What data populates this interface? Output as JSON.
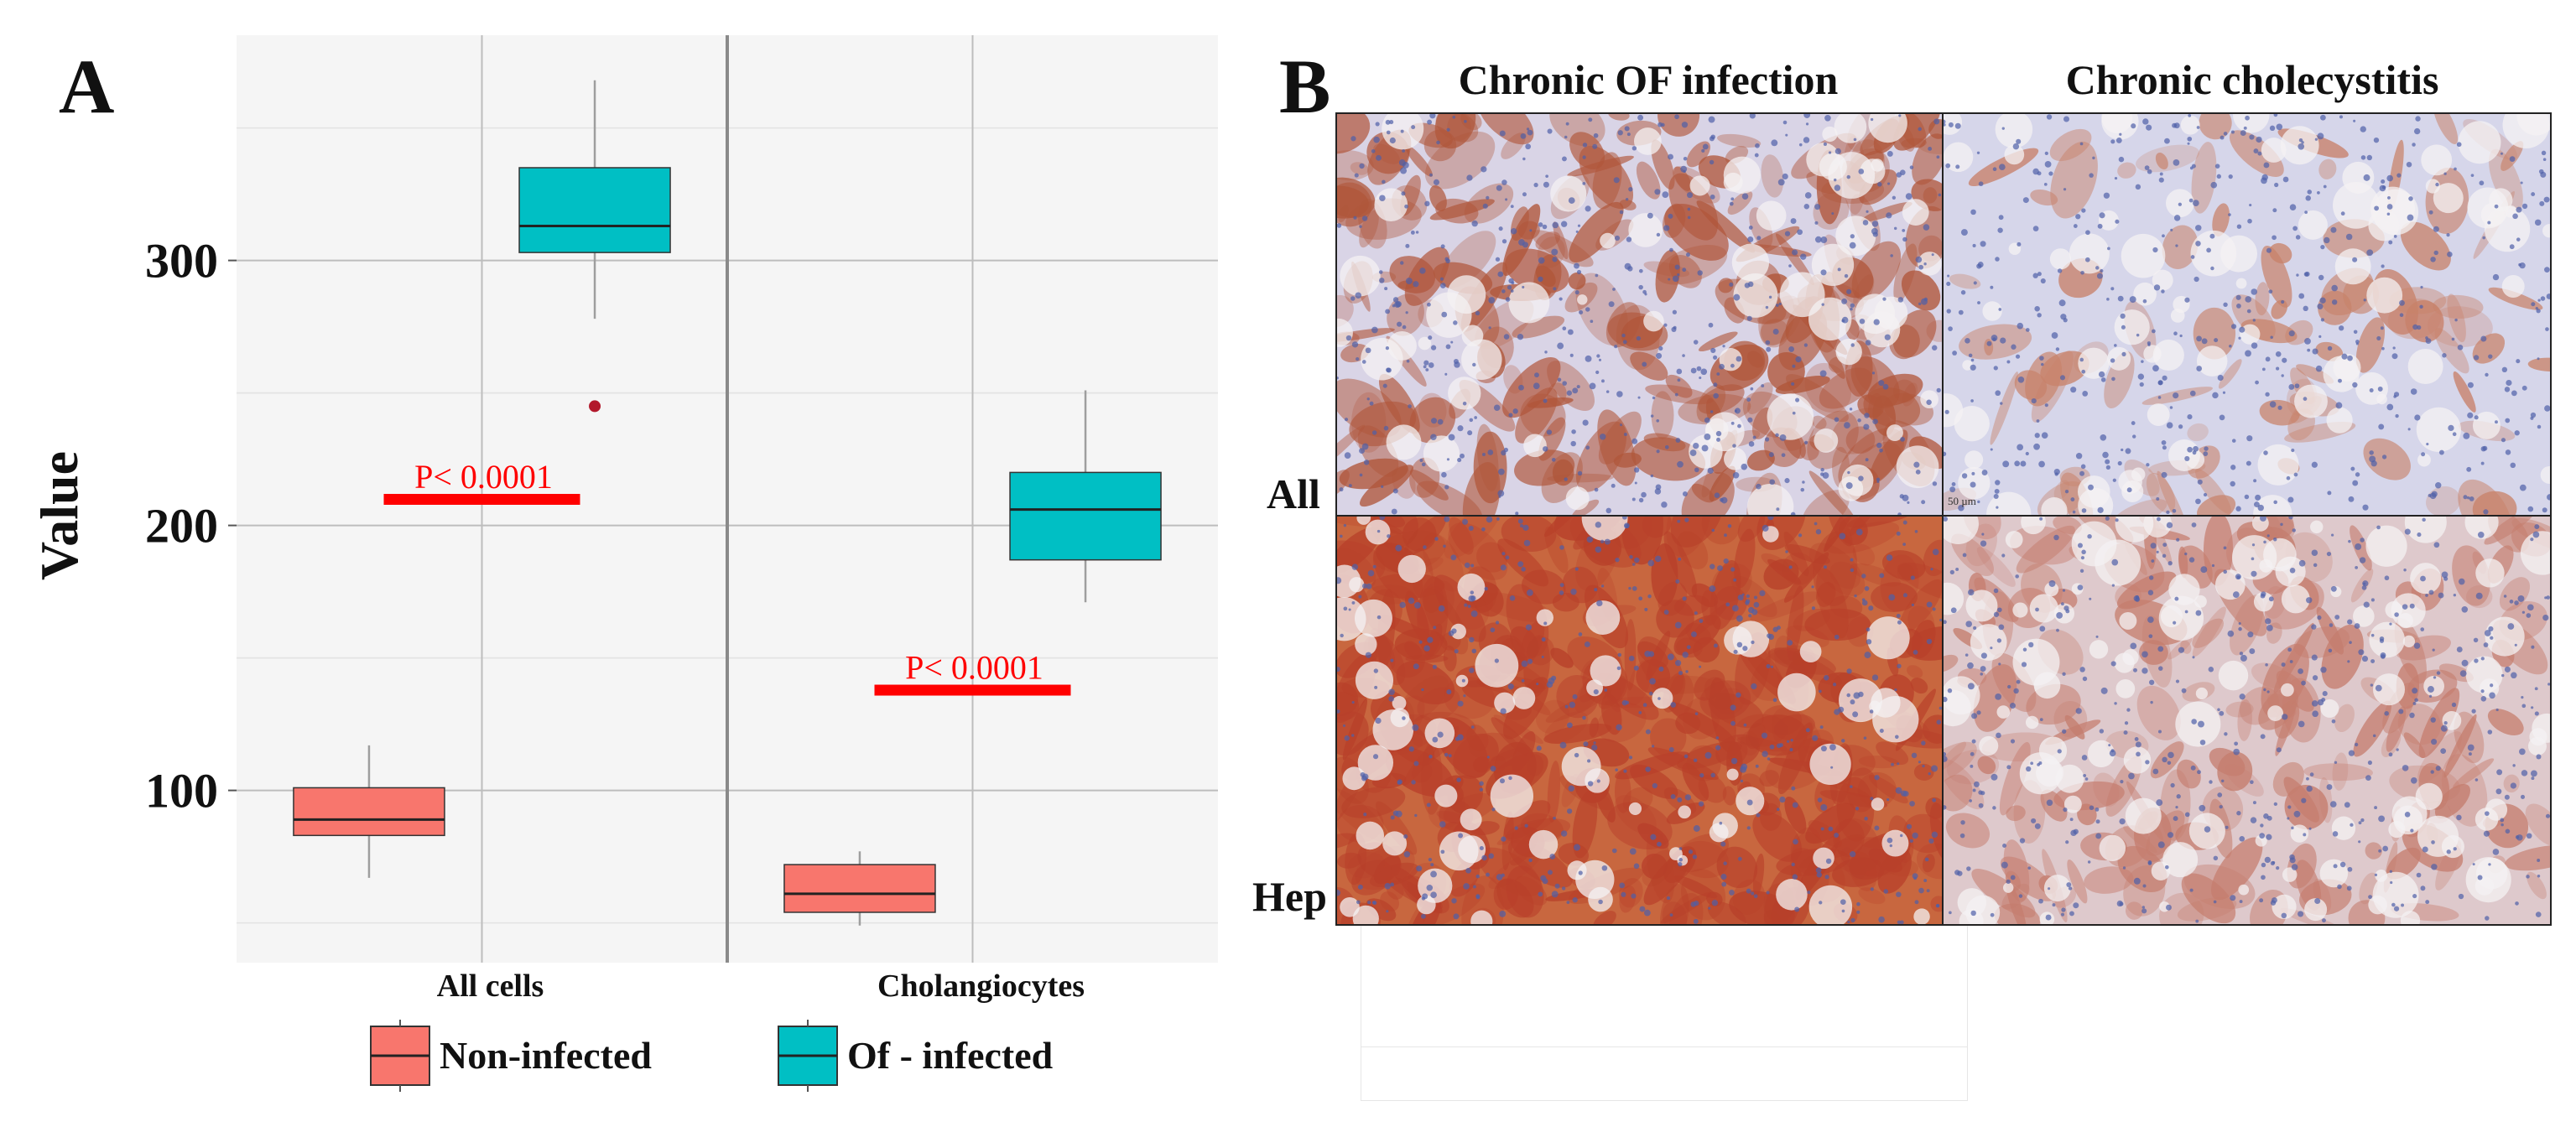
{
  "panels": {
    "a_label": "A",
    "b_label": "B"
  },
  "chart_data": {
    "type": "box",
    "title": "",
    "xlabel": "",
    "ylabel": "Value",
    "ylim": [
      35,
      385
    ],
    "yticks": [
      100,
      200,
      300
    ],
    "categories": [
      "All cells",
      "Cholangiocytes"
    ],
    "series": [
      {
        "name": "Non-infected",
        "color": "#F8766D",
        "boxes": [
          {
            "category": "All cells",
            "whisker_low": 67,
            "q1": 83,
            "median": 89,
            "q3": 101,
            "whisker_high": 117,
            "outliers": []
          },
          {
            "category": "Cholangiocytes",
            "whisker_low": 49,
            "q1": 54,
            "median": 61,
            "q3": 72,
            "whisker_high": 77,
            "outliers": []
          }
        ]
      },
      {
        "name": "Of - infected",
        "color": "#00BFC4",
        "boxes": [
          {
            "category": "All cells",
            "whisker_low": 278,
            "q1": 303,
            "median": 313,
            "q3": 335,
            "whisker_high": 368,
            "outliers": [
              245
            ]
          },
          {
            "category": "Cholangiocytes",
            "whisker_low": 171,
            "q1": 187,
            "median": 206,
            "q3": 220,
            "whisker_high": 251,
            "outliers": []
          }
        ]
      }
    ],
    "annotations": [
      {
        "category": "All cells",
        "text": "P< 0.0001",
        "y": 210,
        "color": "#FF0000"
      },
      {
        "category": "Cholangiocytes",
        "text": "P< 0.0001",
        "y": 138,
        "color": "#FF0000"
      }
    ],
    "legend": {
      "placement": "bottom",
      "entries": [
        "Non-infected",
        "Of - infected"
      ]
    },
    "grid": true
  },
  "micrographs": {
    "columns": [
      "Chronic OF infection",
      "Chronic cholecystitis"
    ],
    "rows": [
      "All",
      "Hep"
    ],
    "scale_bar": "50 µm"
  },
  "colors": {
    "panel_bg": "#F5F5F5",
    "grid": "#BDBDBD",
    "significance": "#FF0000",
    "outlier": "#B2182B",
    "stain_brown": "#B5563A",
    "stain_blue": "#5A6FB5"
  }
}
